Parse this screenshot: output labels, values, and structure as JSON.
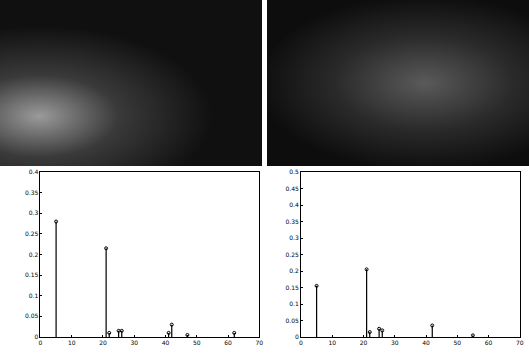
{
  "chart_data": [
    {
      "type": "stem",
      "color": "#000000",
      "marker": "circle",
      "grid": false,
      "x": [
        5,
        21,
        22,
        25,
        26,
        41,
        42,
        47,
        62
      ],
      "values": [
        0.28,
        0.215,
        0.01,
        0.015,
        0.015,
        0.01,
        0.03,
        0.005,
        0.01
      ],
      "xlim": [
        0,
        70
      ],
      "xticks": [
        0,
        10,
        20,
        30,
        40,
        50,
        60,
        70
      ],
      "ylim": [
        0,
        0.4
      ],
      "yticks": [
        0,
        0.05,
        0.1,
        0.15,
        0.2,
        0.25,
        0.3,
        0.35,
        0.4
      ]
    },
    {
      "type": "stem",
      "color": "#000000",
      "marker": "circle",
      "grid": false,
      "x": [
        5,
        21,
        22,
        25,
        26,
        42,
        55
      ],
      "values": [
        0.155,
        0.205,
        0.015,
        0.025,
        0.02,
        0.035,
        0.005
      ],
      "xlim": [
        0,
        70
      ],
      "xticks": [
        0,
        10,
        20,
        30,
        40,
        50,
        60,
        70
      ],
      "ylim": [
        0,
        0.5
      ],
      "yticks": [
        0,
        0.05,
        0.1,
        0.15,
        0.2,
        0.25,
        0.3,
        0.35,
        0.4,
        0.45,
        0.5
      ]
    }
  ]
}
